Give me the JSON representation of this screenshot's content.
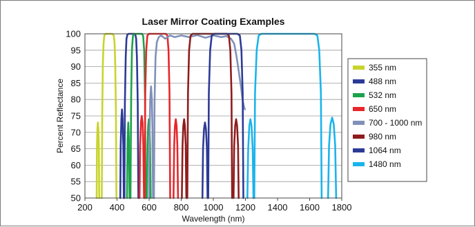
{
  "chart_data": {
    "type": "line",
    "title": "Laser Mirror Coating Examples",
    "xlabel": "Wavelength (nm)",
    "ylabel": "Percent Reflectance",
    "xlim": [
      200,
      1800
    ],
    "ylim": [
      50,
      100
    ],
    "xticks": [
      200,
      400,
      600,
      800,
      1000,
      1200,
      1400,
      1600,
      1800
    ],
    "yticks": [
      50,
      55,
      60,
      65,
      70,
      75,
      80,
      85,
      90,
      95,
      100
    ],
    "grid": "horizontal",
    "legend_position": "right",
    "series": [
      {
        "name": "355 nm",
        "color": "#c8d42c",
        "segments": [
          [
            [
              273,
              50
            ],
            [
              275,
              65
            ],
            [
              278,
              71
            ],
            [
              281,
              73
            ],
            [
              284,
              71
            ],
            [
              287,
              65
            ],
            [
              289,
              50
            ]
          ],
          [
            [
              305,
              50
            ],
            [
              308,
              76
            ],
            [
              312,
              91
            ],
            [
              316,
              97
            ],
            [
              321,
              99.5
            ],
            [
              330,
              100
            ],
            [
              370,
              100
            ],
            [
              380,
              99.5
            ],
            [
              385,
              97
            ],
            [
              389,
              91
            ],
            [
              393,
              76
            ],
            [
              396,
              50
            ]
          ]
        ]
      },
      {
        "name": "488 nm",
        "color": "#2a3a96",
        "segments": [
          [
            [
              420,
              50
            ],
            [
              423,
              66
            ],
            [
              427,
              74
            ],
            [
              431,
              77
            ],
            [
              435,
              74
            ],
            [
              439,
              66
            ],
            [
              442,
              50
            ]
          ],
          [
            [
              446,
              50
            ],
            [
              449,
              79
            ],
            [
              454,
              93
            ],
            [
              459,
              98.5
            ],
            [
              465,
              99.8
            ],
            [
              472,
              100
            ],
            [
              508,
              100
            ],
            [
              514,
              99.8
            ],
            [
              519,
              98.5
            ],
            [
              524,
              93
            ],
            [
              529,
              79
            ],
            [
              533,
              50
            ]
          ]
        ]
      },
      {
        "name": "532 nm",
        "color": "#1ca24a",
        "segments": [
          [
            [
              462,
              50
            ],
            [
              466,
              68
            ],
            [
              470,
              73
            ],
            [
              474,
              68
            ],
            [
              478,
              50
            ]
          ],
          [
            [
              484,
              50
            ],
            [
              488,
              81
            ],
            [
              493,
              95
            ],
            [
              499,
              99.3
            ],
            [
              506,
              100
            ],
            [
              556,
              100
            ],
            [
              563,
              99.3
            ],
            [
              569,
              95
            ],
            [
              574,
              81
            ],
            [
              578,
              50
            ]
          ],
          [
            [
              586,
              50
            ],
            [
              590,
              66
            ],
            [
              594,
              72
            ],
            [
              598,
              74
            ],
            [
              602,
              72
            ],
            [
              606,
              66
            ],
            [
              610,
              50
            ]
          ]
        ]
      },
      {
        "name": "650 nm",
        "color": "#e8262a",
        "segments": [
          [
            [
              540,
              50
            ],
            [
              544,
              66
            ],
            [
              549,
              73
            ],
            [
              554,
              75
            ],
            [
              559,
              73
            ],
            [
              564,
              66
            ],
            [
              568,
              50
            ]
          ],
          [
            [
              572,
              50
            ],
            [
              576,
              82
            ],
            [
              582,
              95
            ],
            [
              589,
              99.4
            ],
            [
              598,
              100
            ],
            [
              705,
              100
            ],
            [
              714,
              99.4
            ],
            [
              721,
              95
            ],
            [
              727,
              82
            ],
            [
              731,
              50
            ]
          ],
          [
            [
              752,
              50
            ],
            [
              756,
              66
            ],
            [
              761,
              72
            ],
            [
              766,
              74
            ],
            [
              771,
              72
            ],
            [
              776,
              66
            ],
            [
              780,
              50
            ]
          ]
        ]
      },
      {
        "name": "700 - 1000 nm",
        "color": "#8090b8",
        "segments": [
          [
            [
              600,
              50
            ],
            [
              603,
              70
            ],
            [
              607,
              80
            ],
            [
              612,
              84
            ],
            [
              617,
              80
            ],
            [
              621,
              70
            ],
            [
              624,
              50
            ]
          ],
          [
            [
              630,
              50
            ],
            [
              634,
              80
            ],
            [
              640,
              93
            ],
            [
              648,
              97.5
            ],
            [
              660,
              99
            ],
            [
              675,
              99.5
            ],
            [
              700,
              98.5
            ],
            [
              730,
              99.5
            ],
            [
              760,
              99
            ],
            [
              800,
              99.5
            ],
            [
              850,
              99
            ],
            [
              900,
              99.6
            ],
            [
              950,
              98.8
            ],
            [
              1000,
              99.5
            ],
            [
              1050,
              99
            ],
            [
              1080,
              99.3
            ],
            [
              1110,
              98.5
            ],
            [
              1130,
              97
            ],
            [
              1145,
              93
            ],
            [
              1160,
              88
            ],
            [
              1172,
              84
            ],
            [
              1182,
              80
            ],
            [
              1190,
              78
            ],
            [
              1196,
              77
            ]
          ]
        ]
      },
      {
        "name": "980 nm",
        "color": "#8e1c1c",
        "segments": [
          [
            [
              804,
              50
            ],
            [
              808,
              66
            ],
            [
              813,
              72
            ],
            [
              818,
              74
            ],
            [
              823,
              72
            ],
            [
              828,
              66
            ],
            [
              832,
              50
            ]
          ],
          [
            [
              838,
              50
            ],
            [
              842,
              82
            ],
            [
              849,
              95
            ],
            [
              858,
              99.4
            ],
            [
              870,
              100
            ],
            [
              1085,
              100
            ],
            [
              1097,
              99.4
            ],
            [
              1106,
              95
            ],
            [
              1113,
              82
            ],
            [
              1117,
              50
            ]
          ],
          [
            [
              1126,
              50
            ],
            [
              1130,
              66
            ],
            [
              1136,
              72
            ],
            [
              1142,
              74
            ],
            [
              1148,
              72
            ],
            [
              1154,
              66
            ],
            [
              1158,
              50
            ]
          ]
        ]
      },
      {
        "name": "1064 nm",
        "color": "#2c3a96",
        "segments": [
          [
            [
              932,
              50
            ],
            [
              936,
              65
            ],
            [
              942,
              71
            ],
            [
              948,
              73
            ],
            [
              954,
              71
            ],
            [
              960,
              65
            ],
            [
              964,
              50
            ]
          ],
          [
            [
              968,
              50
            ],
            [
              972,
              82
            ],
            [
              980,
              95
            ],
            [
              990,
              99.5
            ],
            [
              1005,
              100
            ],
            [
              1150,
              100
            ],
            [
              1165,
              99.5
            ],
            [
              1175,
              95
            ],
            [
              1183,
              82
            ],
            [
              1187,
              50
            ]
          ]
        ]
      },
      {
        "name": "1480 nm",
        "color": "#1ab4ec",
        "segments": [
          [
            [
              1212,
              50
            ],
            [
              1217,
              65
            ],
            [
              1224,
              72
            ],
            [
              1231,
              74
            ],
            [
              1238,
              72
            ],
            [
              1245,
              65
            ],
            [
              1250,
              50
            ]
          ],
          [
            [
              1255,
              50
            ],
            [
              1260,
              82
            ],
            [
              1270,
              95
            ],
            [
              1282,
              99.5
            ],
            [
              1300,
              100
            ],
            [
              1630,
              100
            ],
            [
              1648,
              99.5
            ],
            [
              1660,
              95
            ],
            [
              1670,
              82
            ],
            [
              1675,
              50
            ]
          ],
          [
            [
              1715,
              50
            ],
            [
              1721,
              66
            ],
            [
              1730,
              72.5
            ],
            [
              1740,
              74.5
            ],
            [
              1750,
              72.5
            ],
            [
              1759,
              66
            ],
            [
              1765,
              50
            ]
          ]
        ]
      }
    ]
  }
}
